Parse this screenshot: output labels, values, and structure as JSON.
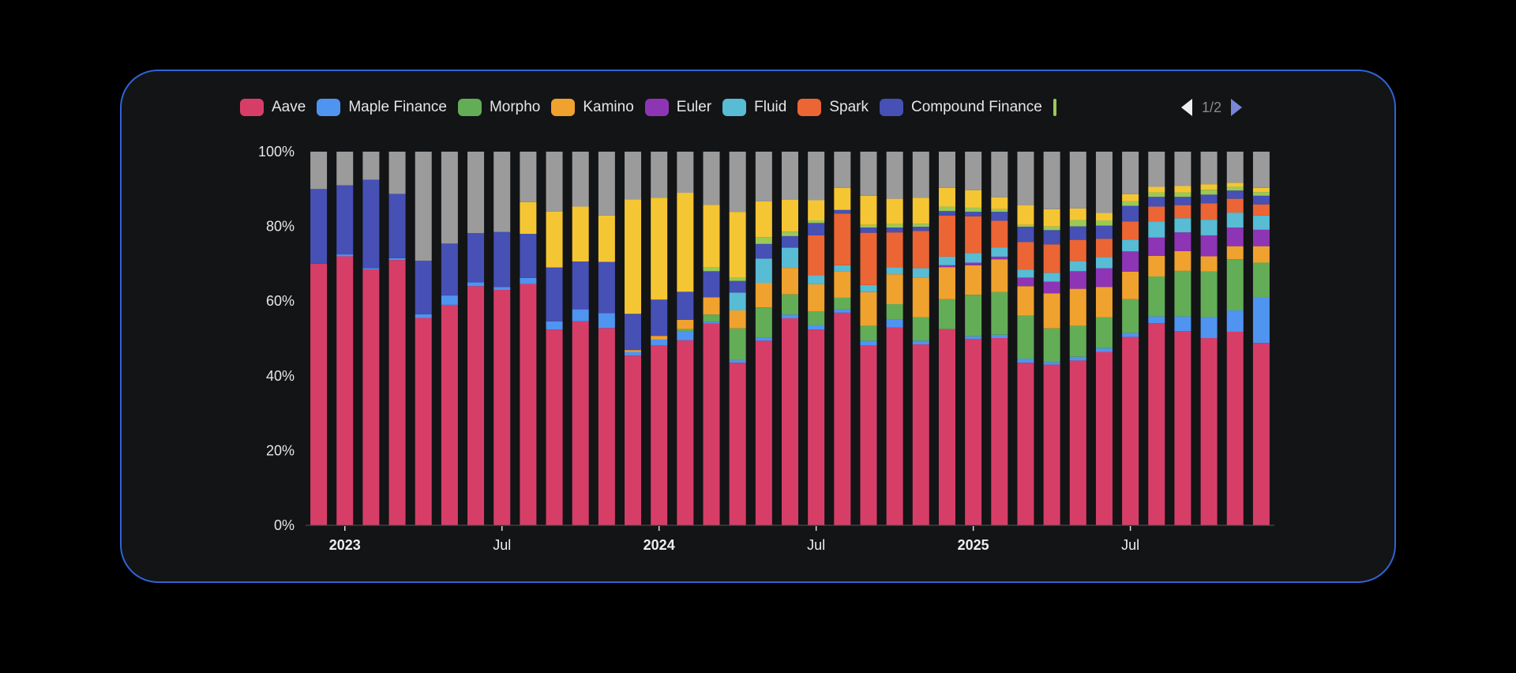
{
  "legend": {
    "items": [
      {
        "name": "Aave",
        "color": "#d63e68"
      },
      {
        "name": "Maple Finance",
        "color": "#4f94f0"
      },
      {
        "name": "Morpho",
        "color": "#63ad57"
      },
      {
        "name": "Kamino",
        "color": "#f0a22e"
      },
      {
        "name": "Euler",
        "color": "#8e35b5"
      },
      {
        "name": "Fluid",
        "color": "#57bcd4"
      },
      {
        "name": "Spark",
        "color": "#ec6534"
      },
      {
        "name": "Compound Finance",
        "color": "#4650b5"
      }
    ],
    "partial_item_color": "#9bc956",
    "page": "1/2"
  },
  "chart_data": {
    "type": "bar",
    "stacked": "percent",
    "title": "",
    "xlabel": "",
    "ylabel": "",
    "ylim": [
      0,
      100
    ],
    "y_ticks": [
      "0%",
      "20%",
      "40%",
      "60%",
      "80%",
      "100%"
    ],
    "x_ticks": [
      {
        "label": "2023",
        "bold": true,
        "index": 1
      },
      {
        "label": "Jul",
        "bold": false,
        "index": 7
      },
      {
        "label": "2024",
        "bold": true,
        "index": 13
      },
      {
        "label": "Jul",
        "bold": false,
        "index": 19
      },
      {
        "label": "2025",
        "bold": true,
        "index": 25
      },
      {
        "label": "Jul",
        "bold": false,
        "index": 31
      }
    ],
    "categories": [
      "2022-12",
      "2023-01",
      "2023-02",
      "2023-03",
      "2023-04",
      "2023-05",
      "2023-06",
      "2023-07",
      "2023-08",
      "2023-09",
      "2023-10",
      "2023-11",
      "2023-12",
      "2024-01",
      "2024-02",
      "2024-03",
      "2024-04",
      "2024-05",
      "2024-06",
      "2024-07",
      "2024-08",
      "2024-09",
      "2024-10",
      "2024-11",
      "2024-12",
      "2025-01",
      "2025-02",
      "2025-03",
      "2025-04",
      "2025-05",
      "2025-06",
      "2025-07",
      "2025-08",
      "2025-09",
      "2025-10",
      "2025-11",
      "2025-12"
    ],
    "legend_position": "top",
    "grid": false,
    "series": [
      {
        "name": "Aave",
        "color": "#d63e68",
        "values": [
          70,
          72,
          68.5,
          71,
          55.5,
          59,
          64,
          63,
          64.6,
          52.4,
          54.6,
          52.8,
          45.4,
          48.2,
          49.5,
          54,
          43.5,
          49.4,
          55.4,
          52.4,
          56.9,
          48.2,
          52.9,
          48.4,
          52.5,
          49.9,
          50.1,
          43.5,
          43,
          44.1,
          46.4,
          50.4,
          54.1,
          52,
          50.1,
          51.8,
          48.8
        ]
      },
      {
        "name": "Maple Finance",
        "color": "#4f94f0",
        "values": [
          0,
          0.5,
          0.3,
          0.5,
          1,
          2.5,
          1,
          0.8,
          1.6,
          2.2,
          3.2,
          4,
          1,
          1.5,
          2.5,
          0.5,
          0.7,
          0.9,
          1,
          1.2,
          0.9,
          1.2,
          2.1,
          1,
          0,
          0.7,
          0.9,
          1.1,
          0.7,
          1,
          1,
          1.1,
          1.8,
          3.9,
          5.6,
          5.7,
          12.3
        ]
      },
      {
        "name": "Morpho",
        "color": "#63ad57",
        "values": [
          0,
          0,
          0,
          0,
          0,
          0,
          0,
          0,
          0,
          0,
          0,
          0,
          0,
          0,
          0.5,
          1.9,
          8.5,
          8,
          5.4,
          3.7,
          3.1,
          4,
          4.2,
          6.3,
          8,
          11.1,
          11.4,
          11.5,
          9,
          8.3,
          8.3,
          9,
          10.7,
          12.2,
          12.2,
          13.7,
          9.2
        ]
      },
      {
        "name": "Kamino",
        "color": "#f0a22e",
        "values": [
          0,
          0,
          0,
          0,
          0,
          0,
          0,
          0,
          0,
          0,
          0,
          0,
          0.5,
          1,
          2.5,
          4.6,
          4.8,
          6.6,
          7.1,
          7.2,
          7.1,
          9,
          8,
          10.6,
          8.6,
          7.9,
          8.8,
          7.9,
          9.4,
          9.9,
          8.1,
          7.4,
          5.5,
          5.3,
          4.1,
          3.5,
          4.4
        ]
      },
      {
        "name": "Euler",
        "color": "#8e35b5",
        "values": [
          0,
          0,
          0,
          0,
          0,
          0,
          0,
          0,
          0,
          0,
          0,
          0,
          0,
          0,
          0,
          0,
          0,
          0,
          0,
          0,
          0,
          0,
          0,
          0,
          0.5,
          0.7,
          0.7,
          2.3,
          3.1,
          4.7,
          5,
          5.4,
          4.9,
          5,
          5.6,
          5,
          4.4
        ]
      },
      {
        "name": "Fluid",
        "color": "#57bcd4",
        "values": [
          0,
          0,
          0,
          0,
          0,
          0,
          0,
          0,
          0,
          0,
          0,
          0,
          0,
          0,
          0,
          0,
          4.8,
          6.5,
          5.4,
          2.4,
          1.6,
          1.9,
          1.9,
          2.5,
          2.3,
          2.6,
          2.5,
          2.1,
          2.4,
          2.7,
          3,
          3.2,
          4.3,
          3.8,
          4.2,
          4,
          3.8
        ]
      },
      {
        "name": "Spark",
        "color": "#ec6534",
        "values": [
          0,
          0,
          0,
          0,
          0,
          0,
          0,
          0,
          0,
          0,
          0,
          0,
          0,
          0,
          0,
          0,
          0,
          0,
          0,
          10.7,
          13.8,
          14,
          9.3,
          10,
          11,
          9.8,
          7.1,
          7.4,
          7.6,
          5.7,
          4.9,
          4.8,
          4,
          3.5,
          4.4,
          3.7,
          3
        ]
      },
      {
        "name": "Compound Finance",
        "color": "#4650b5",
        "values": [
          20,
          18.5,
          23.7,
          17.2,
          14.3,
          13.9,
          13.2,
          14.7,
          11.8,
          14.4,
          12.8,
          13.7,
          9.7,
          9.7,
          7.5,
          7,
          3.1,
          3.9,
          3.1,
          3.3,
          1,
          1.4,
          1.3,
          1.1,
          1.2,
          1.2,
          2.4,
          4.1,
          3.8,
          3.6,
          3.5,
          4.2,
          2.6,
          2.2,
          2.3,
          2.2,
          2.3
        ]
      },
      {
        "color": "#9bc956",
        "values": [
          0,
          0,
          0,
          0,
          0,
          0,
          0,
          0,
          0,
          0,
          0,
          0,
          0,
          0,
          0,
          1,
          0.9,
          1.8,
          1.2,
          0.7,
          0,
          0.7,
          0.9,
          0.8,
          1.2,
          1.1,
          0.7,
          0.5,
          1,
          1.7,
          1.4,
          1.2,
          1.2,
          1.2,
          1.3,
          1,
          1
        ]
      },
      {
        "color": "#f5c633",
        "values": [
          0,
          0,
          0,
          0,
          0,
          0,
          0,
          0,
          8.5,
          15,
          14.7,
          12.4,
          30.6,
          27.3,
          26.5,
          16.8,
          17.6,
          9.6,
          8.5,
          5.4,
          5.9,
          7.8,
          6.8,
          7,
          5,
          4.7,
          3.2,
          5.3,
          4.6,
          3.1,
          2,
          1.9,
          1.5,
          1.7,
          1.5,
          1.1,
          1.1
        ]
      },
      {
        "color": "#9b9b9b",
        "values": [
          10,
          9,
          7.5,
          11.3,
          29.2,
          24.6,
          21.8,
          21.5,
          13.5,
          16,
          14.7,
          17.1,
          12.8,
          12.3,
          11,
          14.2,
          16.1,
          13.3,
          12.9,
          13,
          9.7,
          11.8,
          12.6,
          12.3,
          9.7,
          10.3,
          12.2,
          14.3,
          15.4,
          15.2,
          16.4,
          11.4,
          9.4,
          9.2,
          8.7,
          8.3,
          9.7
        ]
      }
    ]
  }
}
